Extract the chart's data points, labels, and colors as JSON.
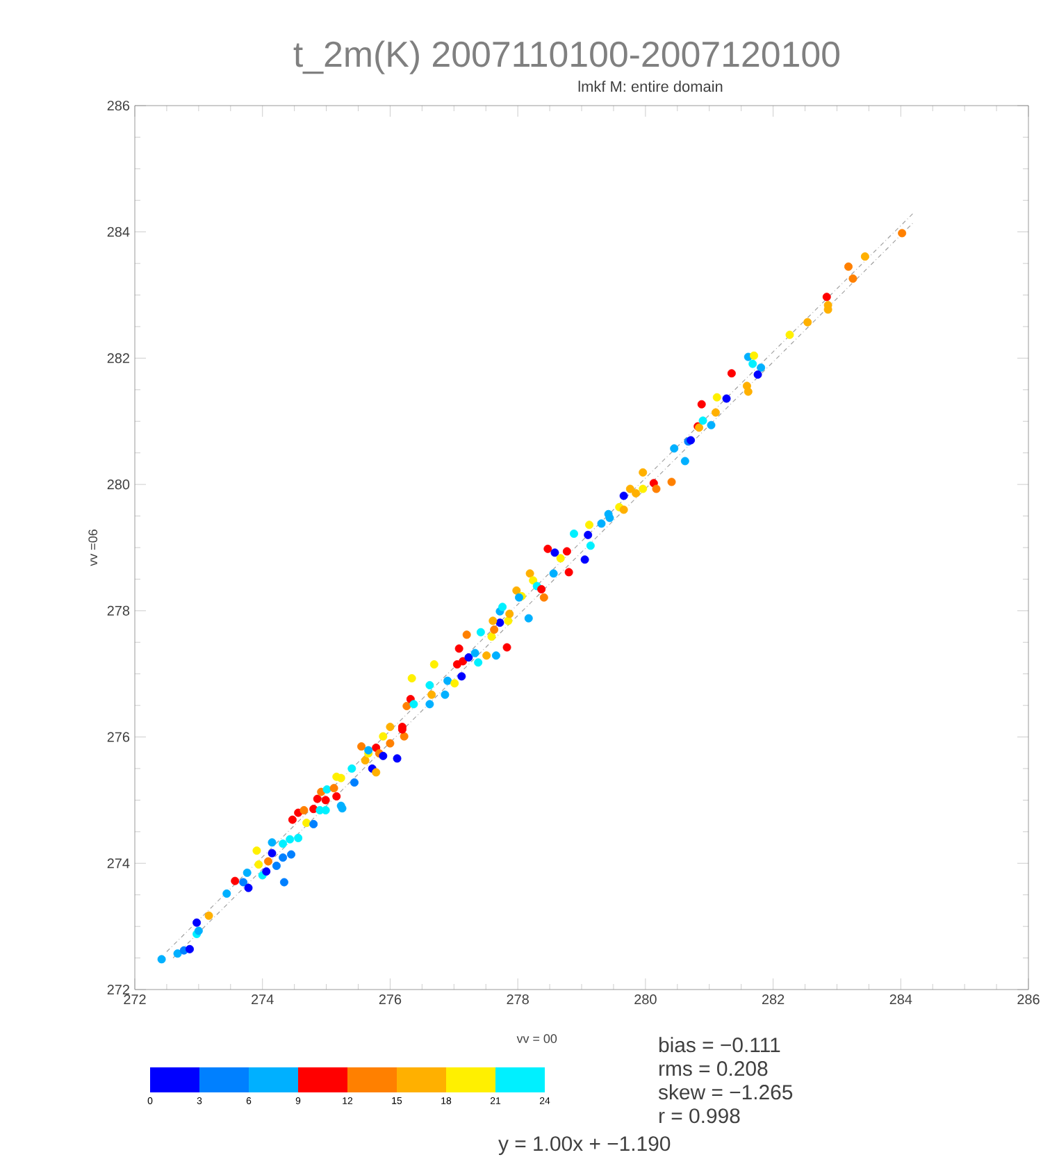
{
  "chart_data": {
    "type": "scatter",
    "title": "t_2m(K)  2007110100-2007120100",
    "subtitle": "lmkf    M: entire domain",
    "xlabel": "vv = 00",
    "ylabel": "vv =06",
    "xlim": [
      272,
      286
    ],
    "ylim": [
      272,
      286
    ],
    "xticks": [
      272,
      274,
      276,
      278,
      280,
      282,
      284,
      286
    ],
    "yticks": [
      272,
      274,
      276,
      278,
      280,
      282,
      284,
      286
    ],
    "clim": [
      0,
      24
    ],
    "cticks": [
      0,
      3,
      6,
      9,
      12,
      15,
      18,
      21,
      24
    ],
    "annotations": [
      "bias = −0.111",
      "rms = 0.208",
      "skew = −1.265",
      "r = 0.998",
      "y = 1.00x + −1.190"
    ],
    "series": [
      {
        "type": "scatter",
        "marker": "circle",
        "x": [
          272.42,
          272.67,
          272.77,
          272.86,
          272.97,
          273.0,
          272.97,
          273.16,
          273.44,
          273.57,
          273.7,
          273.78,
          273.76,
          273.94,
          273.91,
          274.0,
          274.06,
          274.09,
          274.15,
          274.15,
          274.22,
          274.32,
          274.34,
          274.45,
          274.32,
          274.43,
          274.56,
          274.47,
          274.56,
          274.69,
          274.65,
          274.8,
          274.8,
          274.9,
          274.99,
          274.86,
          274.99,
          274.92,
          275.01,
          275.12,
          275.16,
          275.23,
          275.25,
          275.16,
          275.23,
          275.4,
          275.44,
          275.55,
          275.61,
          275.66,
          275.72,
          275.78,
          275.78,
          275.83,
          275.89,
          275.89,
          276.11,
          276.0,
          276.22,
          276.19,
          275.66,
          276.0,
          276.19,
          276.26,
          276.32,
          276.37,
          276.34,
          276.62,
          276.65,
          276.62,
          276.69,
          276.86,
          276.9,
          277.01,
          277.05,
          277.12,
          277.14,
          277.23,
          277.38,
          277.33,
          277.51,
          277.66,
          277.83,
          277.08,
          277.2,
          277.42,
          277.59,
          277.63,
          277.72,
          277.61,
          277.72,
          277.76,
          277.85,
          277.87,
          278.17,
          277.98,
          278.06,
          278.02,
          278.19,
          278.24,
          278.3,
          278.37,
          278.41,
          278.56,
          278.47,
          278.58,
          278.77,
          278.8,
          278.67,
          278.88,
          279.1,
          279.14,
          279.05,
          279.12,
          279.31,
          279.42,
          279.44,
          279.59,
          279.66,
          279.66,
          279.76,
          279.85,
          279.96,
          280.13,
          280.17,
          279.96,
          280.41,
          280.45,
          280.62,
          280.67,
          280.71,
          280.82,
          280.84,
          280.9,
          281.03,
          281.1,
          281.12,
          280.88,
          281.27,
          281.35,
          281.59,
          281.61,
          281.61,
          281.7,
          281.68,
          281.81,
          281.76,
          282.26,
          282.54,
          282.84,
          282.86,
          282.86,
          283.18,
          283.25,
          283.44,
          284.02
        ],
        "values": [
          272.48,
          272.57,
          272.62,
          272.64,
          272.88,
          272.93,
          273.06,
          273.17,
          273.52,
          273.72,
          273.7,
          273.61,
          273.85,
          273.98,
          274.2,
          273.81,
          273.87,
          274.03,
          274.33,
          274.16,
          273.96,
          274.09,
          273.7,
          274.14,
          274.31,
          274.38,
          274.4,
          274.69,
          274.8,
          274.64,
          274.84,
          274.86,
          274.62,
          274.84,
          274.84,
          275.02,
          275.0,
          275.13,
          275.17,
          275.19,
          275.06,
          274.91,
          274.87,
          275.37,
          275.35,
          275.5,
          275.28,
          275.85,
          275.63,
          275.74,
          275.5,
          275.44,
          275.83,
          275.74,
          276.01,
          275.7,
          275.66,
          275.9,
          276.01,
          276.12,
          275.79,
          276.16,
          276.16,
          276.49,
          276.6,
          276.52,
          276.93,
          276.82,
          276.67,
          276.52,
          277.15,
          276.67,
          276.89,
          276.85,
          277.15,
          276.96,
          277.2,
          277.26,
          277.18,
          277.33,
          277.29,
          277.29,
          277.42,
          277.4,
          277.62,
          277.66,
          277.59,
          277.7,
          277.81,
          277.84,
          277.99,
          278.06,
          277.84,
          277.95,
          277.88,
          278.32,
          278.23,
          278.21,
          278.59,
          278.48,
          278.39,
          278.34,
          278.21,
          278.59,
          278.98,
          278.92,
          278.94,
          278.61,
          278.83,
          279.22,
          279.2,
          279.03,
          278.81,
          279.36,
          279.38,
          279.53,
          279.47,
          279.64,
          279.82,
          279.6,
          279.93,
          279.86,
          279.93,
          280.02,
          279.93,
          280.19,
          280.04,
          280.57,
          280.37,
          280.68,
          280.7,
          280.92,
          280.9,
          281.01,
          280.94,
          281.14,
          281.38,
          281.27,
          281.36,
          281.76,
          281.56,
          281.47,
          282.02,
          282.04,
          281.91,
          281.85,
          281.74,
          282.37,
          282.57,
          282.97,
          282.84,
          282.77,
          283.45,
          283.26,
          283.61,
          283.98
        ],
        "colors": [
          "#00b0ff",
          "#00b0ff",
          "#0080ff",
          "#0000ff",
          "#00f0ff",
          "#00b0ff",
          "#0000ff",
          "#ffb000",
          "#00b0ff",
          "#ff0000",
          "#0080ff",
          "#0000ff",
          "#00b0ff",
          "#fff000",
          "#fff000",
          "#00f0ff",
          "#0000ff",
          "#ff8000",
          "#00b0ff",
          "#0000ff",
          "#0080ff",
          "#0080ff",
          "#0080ff",
          "#0080ff",
          "#00f0ff",
          "#00f0ff",
          "#00f0ff",
          "#ff0000",
          "#ff0000",
          "#fff000",
          "#ff8000",
          "#ff0000",
          "#0080ff",
          "#00f0ff",
          "#00f0ff",
          "#ff0000",
          "#ff0000",
          "#ff8000",
          "#00f0ff",
          "#ff8000",
          "#ff0000",
          "#00b0ff",
          "#00b0ff",
          "#fff000",
          "#fff000",
          "#00f0ff",
          "#0080ff",
          "#ff8000",
          "#ffb000",
          "#fff000",
          "#0000ff",
          "#ffb000",
          "#ff0000",
          "#ff8000",
          "#fff000",
          "#0000ff",
          "#0000ff",
          "#ff8000",
          "#ff8000",
          "#ff0000",
          "#00b0ff",
          "#ffb000",
          "#ff0000",
          "#ff8000",
          "#ff0000",
          "#00f0ff",
          "#fff000",
          "#00f0ff",
          "#ffb000",
          "#00b0ff",
          "#fff000",
          "#00b0ff",
          "#00b0ff",
          "#fff000",
          "#ff0000",
          "#0000ff",
          "#ff0000",
          "#0000ff",
          "#00f0ff",
          "#00b0ff",
          "#ffb000",
          "#00b0ff",
          "#ff0000",
          "#ff0000",
          "#ff8000",
          "#00f0ff",
          "#fff000",
          "#ff8000",
          "#0000ff",
          "#ffb000",
          "#00b0ff",
          "#00f0ff",
          "#fff000",
          "#ffb000",
          "#00b0ff",
          "#ffb000",
          "#fff000",
          "#00b0ff",
          "#ffb000",
          "#fff000",
          "#00f0ff",
          "#ff0000",
          "#ff8000",
          "#00b0ff",
          "#ff0000",
          "#0000ff",
          "#ff0000",
          "#ff0000",
          "#fff000",
          "#00f0ff",
          "#0000ff",
          "#00f0ff",
          "#0000ff",
          "#fff000",
          "#00b0ff",
          "#00b0ff",
          "#00b0ff",
          "#fff000",
          "#0000ff",
          "#ffb000",
          "#ffb000",
          "#ffb000",
          "#fff000",
          "#ff0000",
          "#ff8000",
          "#ffb000",
          "#ff8000",
          "#00b0ff",
          "#00b0ff",
          "#0080ff",
          "#0000ff",
          "#ff0000",
          "#ffb000",
          "#00f0ff",
          "#00b0ff",
          "#ffb000",
          "#fff000",
          "#ff0000",
          "#0000ff",
          "#ff0000",
          "#ffb000",
          "#ffb000",
          "#00b0ff",
          "#fff000",
          "#00f0ff",
          "#00b0ff",
          "#0000ff",
          "#fff000",
          "#ffb000",
          "#ff0000",
          "#ffb000",
          "#ffb000",
          "#ff8000",
          "#ff8000",
          "#ffb000",
          "#ff8000"
        ],
        "line_style": "none"
      },
      {
        "type": "line",
        "x": [
          272.5,
          284.2
        ],
        "values": [
          272.6,
          284.3
        ],
        "color": "#a0a0a0",
        "line_style": "dashed",
        "marker": "none"
      },
      {
        "type": "line",
        "x": [
          272.6,
          284.2
        ],
        "values": [
          272.5,
          284.15
        ],
        "color": "#a0a0a0",
        "line_style": "dashed",
        "marker": "none"
      }
    ]
  }
}
